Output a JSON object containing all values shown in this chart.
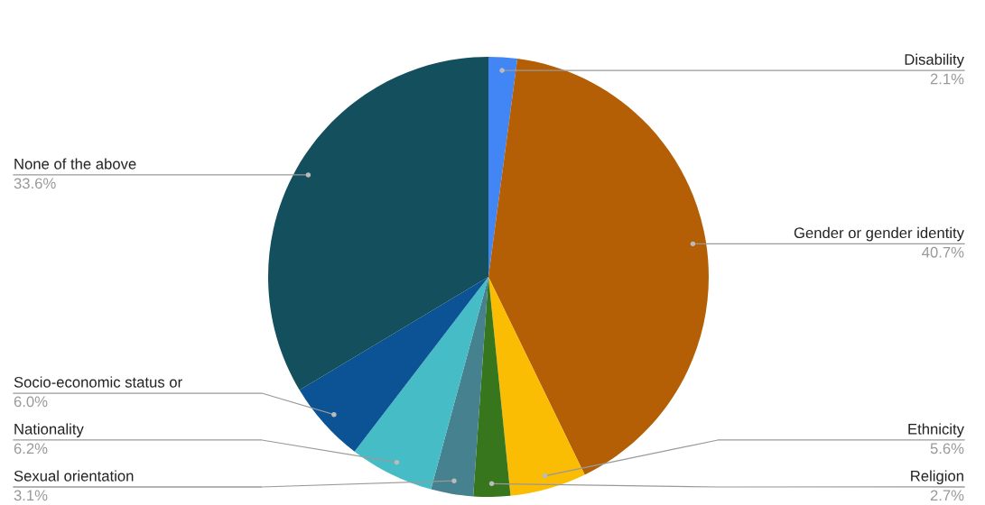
{
  "chart_data": {
    "type": "pie",
    "categories": [
      "Disability",
      "Gender or gender identity",
      "Ethnicity",
      "Religion",
      "Sexual orientation",
      "Nationality",
      "Socio-economic status or",
      "None of the above"
    ],
    "values": [
      2.1,
      40.7,
      5.6,
      2.7,
      3.1,
      6.2,
      6.0,
      33.6
    ],
    "value_labels": [
      "2.1%",
      "40.7%",
      "5.6%",
      "2.7%",
      "3.1%",
      "6.2%",
      "6.0%",
      "33.6%"
    ],
    "colors": [
      "#4285f4",
      "#b45f06",
      "#fbbc04",
      "#38761d",
      "#45818e",
      "#46bdc6",
      "#0b5394",
      "#134f5c"
    ],
    "legend": false
  }
}
